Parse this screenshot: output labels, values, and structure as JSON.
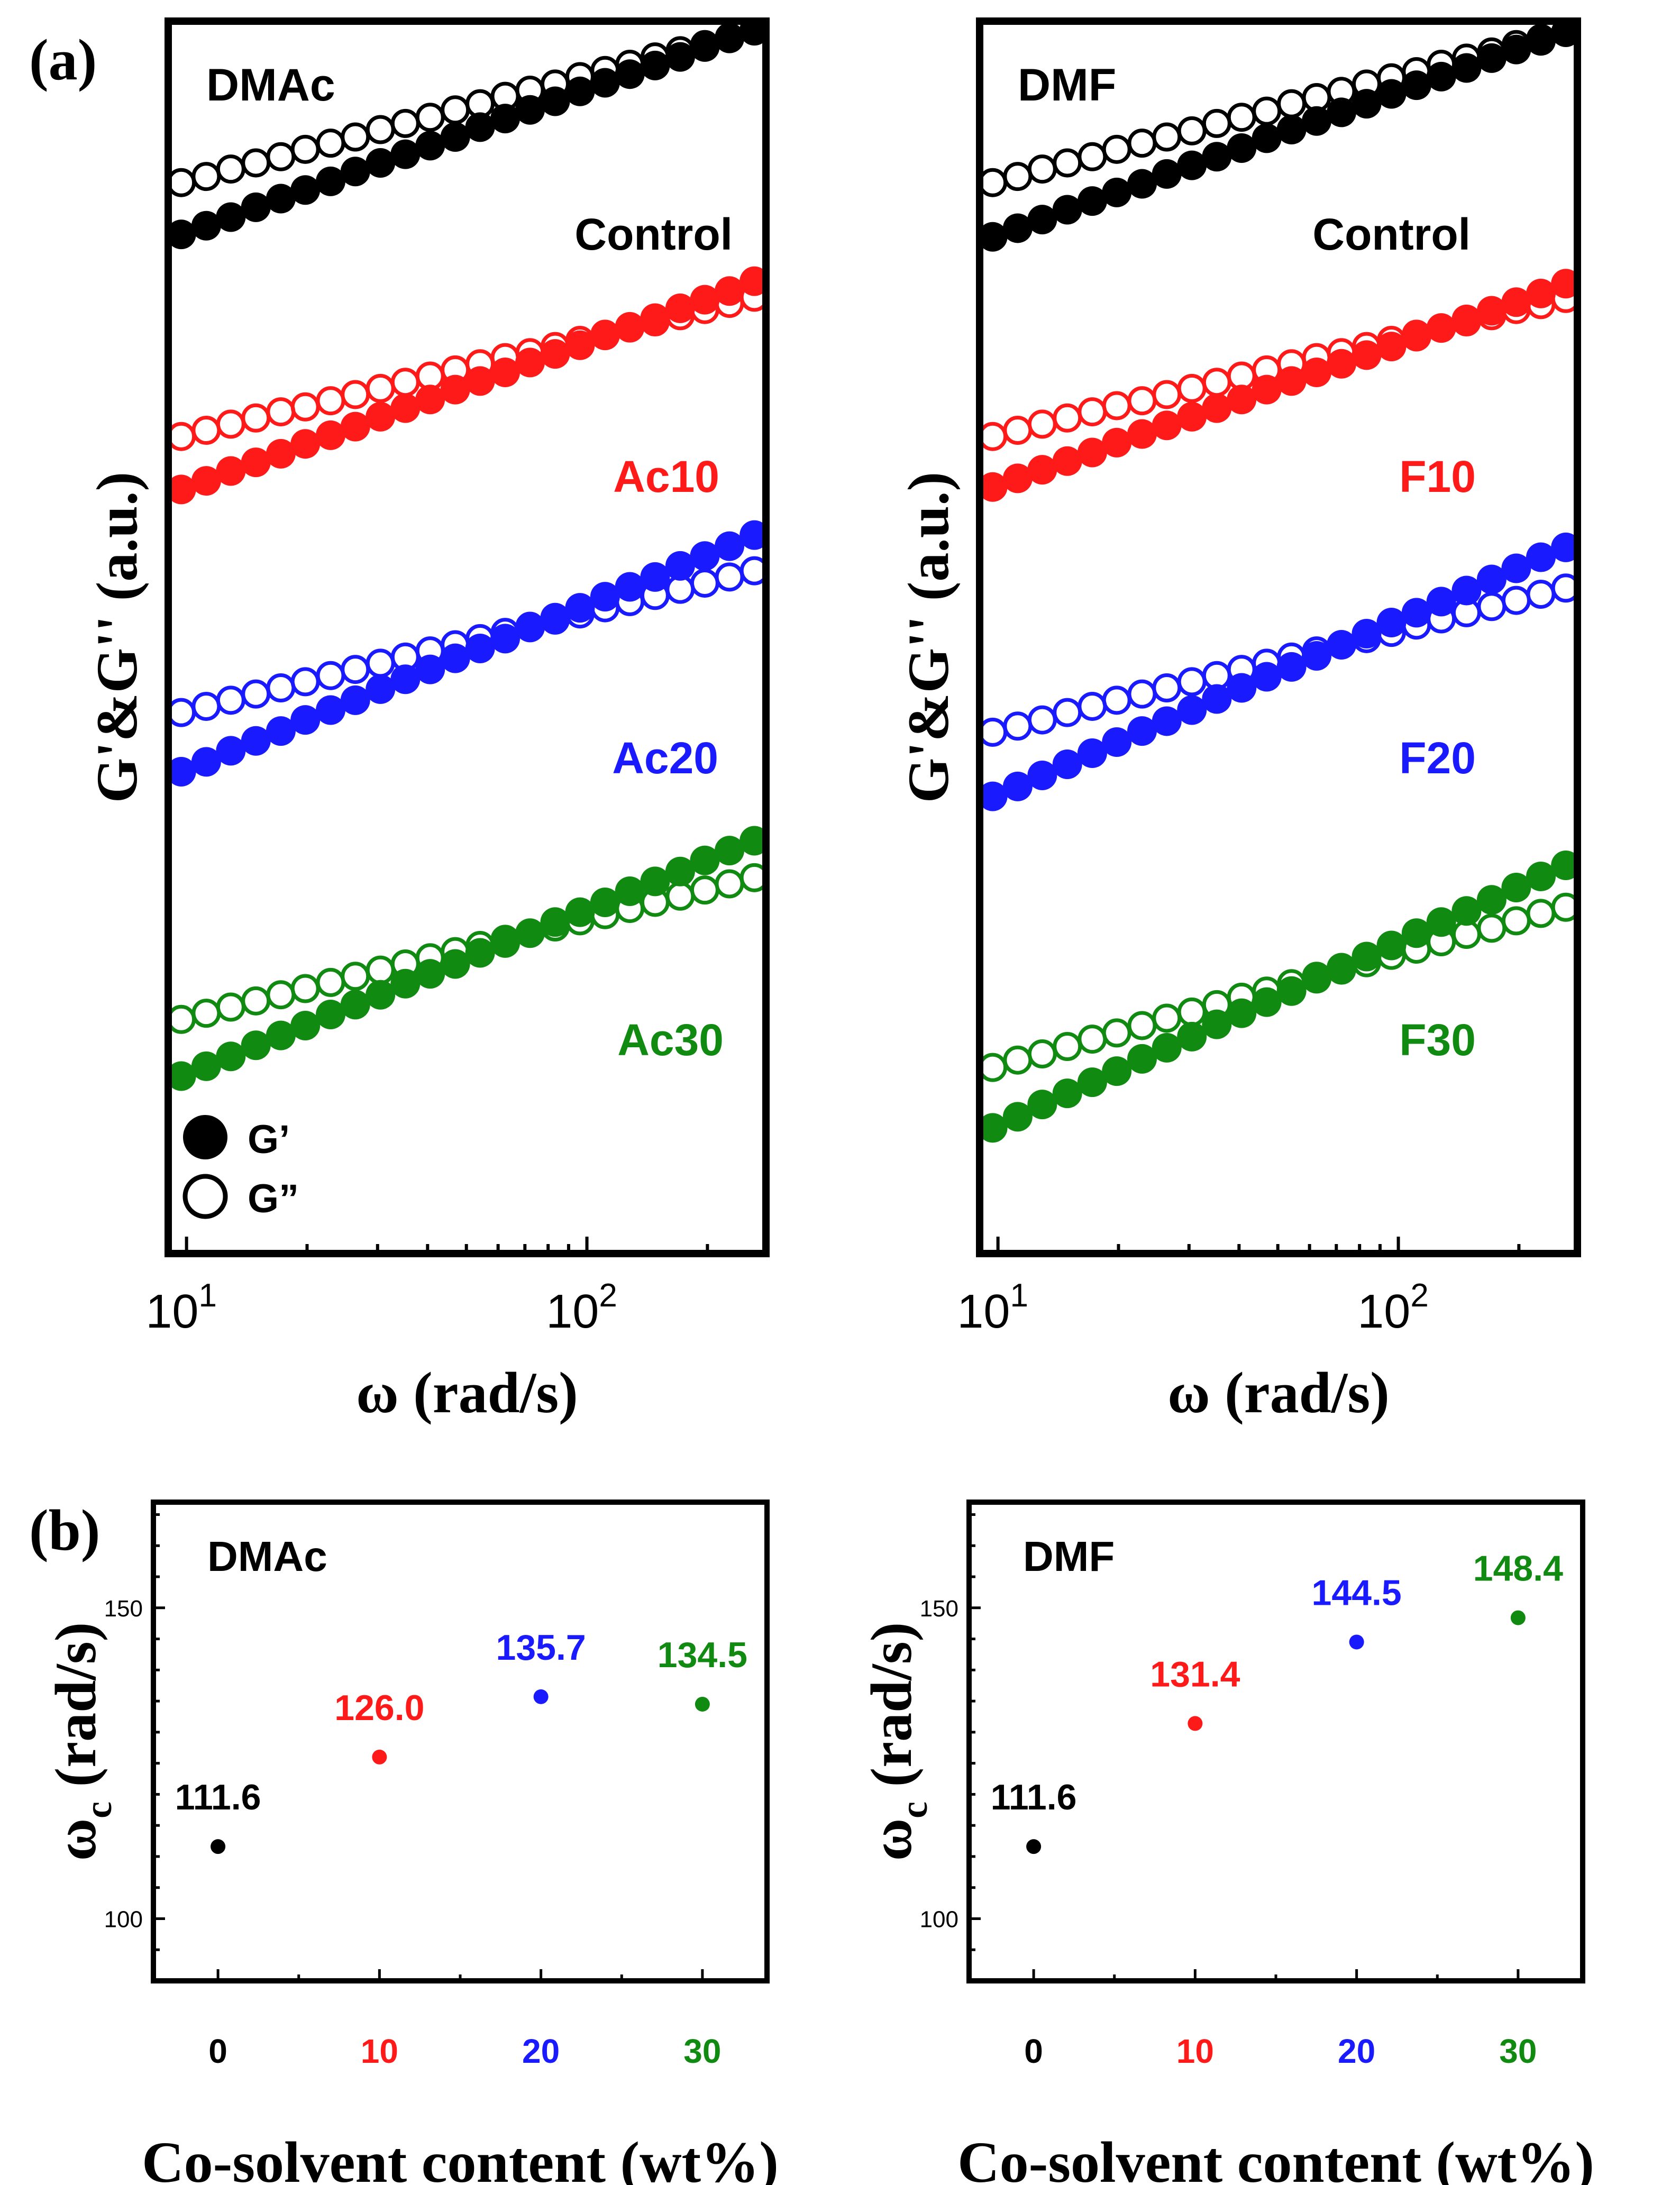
{
  "panel_labels": {
    "a": "(a)",
    "b": "(b)"
  },
  "colors": {
    "control": "#000000",
    "level10": "#ff1a1a",
    "level20": "#1a1aff",
    "level30": "#118a11"
  },
  "chart_data": [
    {
      "id": "a-dmac",
      "type": "scatter",
      "title": "DMAc",
      "xlabel": "ω (rad/s)",
      "ylabel": "G'&G'' (a.u.)",
      "xscale": "log",
      "xlim": [
        9,
        280
      ],
      "ylim": [
        0,
        100
      ],
      "xticks": [
        {
          "value": 10,
          "base": "10",
          "exp": "1"
        },
        {
          "value": 100,
          "base": "10",
          "exp": "2"
        }
      ],
      "x": [
        9.7,
        11.2,
        12.9,
        14.9,
        17.2,
        19.8,
        22.9,
        26.4,
        30.5,
        35.2,
        40.6,
        46.9,
        54.1,
        62.5,
        72.1,
        83.3,
        96.1,
        111,
        128,
        148,
        171,
        197,
        227,
        262
      ],
      "legend": {
        "gp": "G’",
        "gpp": "G”"
      },
      "series": [
        {
          "name": "Control",
          "label_key": "control",
          "gp": [
            82.7,
            83.4,
            84.1,
            84.9,
            85.6,
            86.3,
            87.0,
            87.8,
            88.5,
            89.2,
            89.9,
            90.6,
            91.4,
            92.1,
            92.8,
            93.5,
            94.3,
            95.0,
            95.7,
            96.4,
            97.1,
            97.9,
            98.6,
            99.3
          ],
          "gpp": [
            86.9,
            87.4,
            88.0,
            88.5,
            89.0,
            89.6,
            90.1,
            90.6,
            91.2,
            91.7,
            92.2,
            92.8,
            93.3,
            93.9,
            94.4,
            94.9,
            95.5,
            96.0,
            96.5,
            97.1,
            97.6,
            98.1,
            98.7,
            99.2
          ]
        },
        {
          "name": "Ac10",
          "label_key": "level10",
          "gp": [
            62.0,
            62.7,
            63.5,
            64.2,
            64.9,
            65.7,
            66.4,
            67.1,
            67.9,
            68.6,
            69.3,
            70.1,
            70.8,
            71.5,
            72.3,
            73.0,
            73.7,
            74.5,
            75.2,
            75.9,
            76.7,
            77.4,
            78.1,
            78.9
          ],
          "gpp": [
            66.3,
            66.8,
            67.3,
            67.8,
            68.3,
            68.7,
            69.2,
            69.7,
            70.2,
            70.7,
            71.2,
            71.7,
            72.2,
            72.7,
            73.1,
            73.6,
            74.1,
            74.6,
            75.1,
            75.6,
            76.1,
            76.6,
            77.1,
            77.6
          ]
        },
        {
          "name": "Ac20",
          "label_key": "level20",
          "gp": [
            39.1,
            39.9,
            40.8,
            41.6,
            42.4,
            43.3,
            44.1,
            44.9,
            45.8,
            46.6,
            47.4,
            48.3,
            49.1,
            49.9,
            50.8,
            51.6,
            52.4,
            53.3,
            54.1,
            54.9,
            55.8,
            56.6,
            57.4,
            58.3
          ],
          "gpp": [
            43.9,
            44.4,
            44.9,
            45.4,
            45.9,
            46.4,
            46.9,
            47.4,
            47.9,
            48.4,
            48.9,
            49.4,
            49.9,
            50.4,
            50.9,
            51.4,
            51.9,
            52.4,
            52.9,
            53.4,
            53.9,
            54.4,
            54.9,
            55.4
          ]
        },
        {
          "name": "Ac30",
          "label_key": "level30",
          "gp": [
            14.4,
            15.2,
            16.0,
            16.9,
            17.7,
            18.5,
            19.4,
            20.2,
            21.0,
            21.9,
            22.7,
            23.5,
            24.4,
            25.2,
            26.0,
            26.9,
            27.7,
            28.5,
            29.4,
            30.2,
            31.0,
            31.9,
            32.7,
            33.5
          ],
          "gpp": [
            19.0,
            19.5,
            20.0,
            20.5,
            21.0,
            21.5,
            22.0,
            22.5,
            23.0,
            23.5,
            24.0,
            24.5,
            25.0,
            25.5,
            26.0,
            26.5,
            27.0,
            27.5,
            28.0,
            28.5,
            29.0,
            29.5,
            30.0,
            30.5
          ]
        }
      ]
    },
    {
      "id": "a-dmf",
      "type": "scatter",
      "title": "DMF",
      "xlabel": "ω (rad/s)",
      "ylabel": "G'&G'' (a.u.)",
      "xscale": "log",
      "xlim": [
        9,
        280
      ],
      "ylim": [
        0,
        100
      ],
      "xticks": [
        {
          "value": 10,
          "base": "10",
          "exp": "1"
        },
        {
          "value": 100,
          "base": "10",
          "exp": "2"
        }
      ],
      "x": [
        9.7,
        11.2,
        12.9,
        14.9,
        17.2,
        19.8,
        22.9,
        26.4,
        30.5,
        35.2,
        40.6,
        46.9,
        54.1,
        62.5,
        72.1,
        83.3,
        96.1,
        111,
        128,
        148,
        171,
        197,
        227,
        262
      ],
      "series": [
        {
          "name": "Control",
          "label_key": "control",
          "gp": [
            82.5,
            83.2,
            83.9,
            84.7,
            85.4,
            86.1,
            86.8,
            87.6,
            88.3,
            89.0,
            89.7,
            90.5,
            91.2,
            91.9,
            92.6,
            93.3,
            94.1,
            94.8,
            95.5,
            96.2,
            97.0,
            97.7,
            98.4,
            99.1
          ],
          "gpp": [
            86.9,
            87.4,
            88.0,
            88.5,
            89.0,
            89.6,
            90.1,
            90.6,
            91.1,
            91.7,
            92.2,
            92.7,
            93.3,
            93.8,
            94.3,
            94.9,
            95.4,
            95.9,
            96.5,
            97.0,
            97.5,
            98.1,
            98.6,
            99.1
          ]
        },
        {
          "name": "F10",
          "label_key": "level10",
          "gp": [
            62.2,
            62.9,
            63.6,
            64.3,
            65.0,
            65.8,
            66.5,
            67.2,
            67.9,
            68.6,
            69.3,
            70.1,
            70.8,
            71.5,
            72.2,
            72.9,
            73.6,
            74.4,
            75.1,
            75.8,
            76.5,
            77.2,
            77.9,
            78.7
          ],
          "gpp": [
            66.3,
            66.8,
            67.3,
            67.8,
            68.3,
            68.8,
            69.2,
            69.7,
            70.2,
            70.7,
            71.2,
            71.7,
            72.2,
            72.7,
            73.1,
            73.6,
            74.1,
            74.6,
            75.1,
            75.6,
            76.1,
            76.6,
            77.0,
            77.5
          ]
        },
        {
          "name": "F20",
          "label_key": "level20",
          "gp": [
            37.1,
            37.9,
            38.8,
            39.7,
            40.6,
            41.5,
            42.4,
            43.2,
            44.1,
            45.0,
            45.9,
            46.8,
            47.6,
            48.5,
            49.4,
            50.3,
            51.2,
            52.0,
            52.9,
            53.8,
            54.7,
            55.6,
            56.5,
            57.3
          ],
          "gpp": [
            42.3,
            42.8,
            43.3,
            43.9,
            44.4,
            44.9,
            45.4,
            45.9,
            46.4,
            46.9,
            47.4,
            47.9,
            48.4,
            48.9,
            49.4,
            49.9,
            50.4,
            51.0,
            51.5,
            52.0,
            52.5,
            53.0,
            53.5,
            54.0
          ]
        },
        {
          "name": "F30",
          "label_key": "level30",
          "gp": [
            10.2,
            11.1,
            12.1,
            13.0,
            13.9,
            14.8,
            15.8,
            16.7,
            17.6,
            18.6,
            19.5,
            20.4,
            21.3,
            22.3,
            23.2,
            24.1,
            25.0,
            26.0,
            26.9,
            27.8,
            28.7,
            29.7,
            30.6,
            31.5
          ],
          "gpp": [
            15.1,
            15.7,
            16.2,
            16.8,
            17.4,
            17.9,
            18.5,
            19.1,
            19.6,
            20.2,
            20.8,
            21.3,
            21.9,
            22.5,
            23.0,
            23.6,
            24.2,
            24.7,
            25.3,
            25.9,
            26.4,
            27.0,
            27.6,
            28.1
          ]
        }
      ]
    },
    {
      "id": "b-dmac",
      "type": "scatter",
      "title": "DMAc",
      "xlabel": "Co-solvent content (wt%)",
      "ylabel_main": "ω",
      "ylabel_sub": "c",
      "ylabel_rest": " (rad/s)",
      "xlim": [
        -4,
        34
      ],
      "ylim": [
        90,
        167
      ],
      "xticks": [
        "0",
        "10",
        "20",
        "30"
      ],
      "yticks": [
        "100",
        "150"
      ],
      "x": [
        0,
        10,
        20,
        30
      ],
      "values": [
        111.6,
        126.0,
        135.7,
        134.5
      ],
      "labels": [
        "111.6",
        "126.0",
        "135.7",
        "134.5"
      ],
      "color_keys": [
        "control",
        "level10",
        "level20",
        "level30"
      ]
    },
    {
      "id": "b-dmf",
      "type": "scatter",
      "title": "DMF",
      "xlabel": "Co-solvent content (wt%)",
      "ylabel_main": "ω",
      "ylabel_sub": "c",
      "ylabel_rest": " (rad/s)",
      "xlim": [
        -4,
        34
      ],
      "ylim": [
        90,
        167
      ],
      "xticks": [
        "0",
        "10",
        "20",
        "30"
      ],
      "yticks": [
        "100",
        "150"
      ],
      "x": [
        0,
        10,
        20,
        30
      ],
      "values": [
        111.6,
        131.4,
        144.5,
        148.4
      ],
      "labels": [
        "111.6",
        "131.4",
        "144.5",
        "148.4"
      ],
      "color_keys": [
        "control",
        "level10",
        "level20",
        "level30"
      ]
    }
  ]
}
